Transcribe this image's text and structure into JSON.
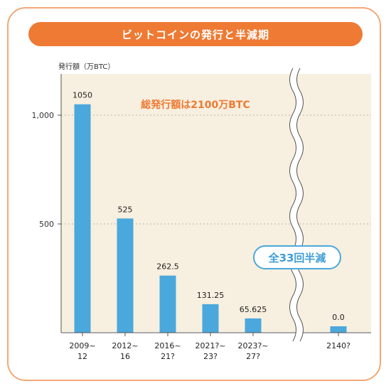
{
  "title": "ビットコインの発行と半減期",
  "chart_data": {
    "type": "bar",
    "ylabel": "発行額（万BTC）",
    "yticks": [
      1000,
      500
    ],
    "ytick_labels": [
      "1,000",
      "500"
    ],
    "ylim": [
      0,
      1100
    ],
    "grid": true,
    "categories": [
      "2009~\n12",
      "2012~\n16",
      "2016~\n21?",
      "2021?~\n23?",
      "2023?~\n27?",
      "2140?"
    ],
    "values": [
      1050,
      525,
      262.5,
      131.25,
      65.625,
      0.0
    ],
    "value_labels": [
      "1050",
      "525",
      "262.5",
      "131.25",
      "65.625",
      "0.0"
    ],
    "annotations": {
      "total": "総発行額は2100万BTC",
      "halvings": "全33回半減"
    },
    "axis_break": true
  },
  "colors": {
    "bar": "#4aa8dc",
    "accent": "#ee7a33",
    "plot_bg": "#f7efdf",
    "grid": "#bfb6a6",
    "halving_text": "#3f9ed6"
  }
}
